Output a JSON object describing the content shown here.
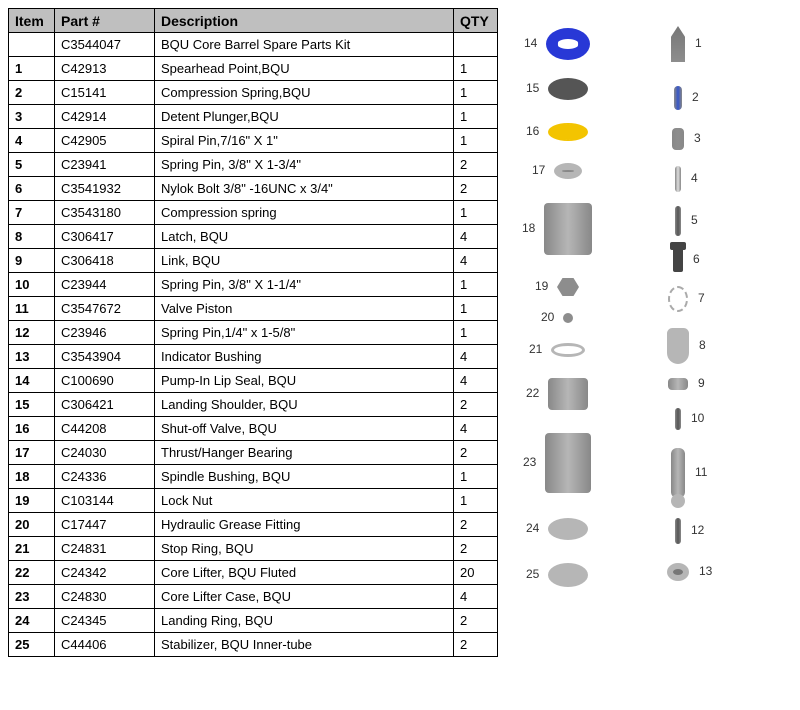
{
  "columns": [
    "Item",
    "Part #",
    "Description",
    "QTY"
  ],
  "rows": [
    [
      "",
      "C3544047",
      "BQU Core Barrel Spare Parts Kit",
      ""
    ],
    [
      "1",
      "C42913",
      "Spearhead Point,BQU",
      "1"
    ],
    [
      "2",
      "C15141",
      "Compression Spring,BQU",
      "1"
    ],
    [
      "3",
      "C42914",
      "Detent Plunger,BQU",
      "1"
    ],
    [
      "4",
      "C42905",
      "Spiral Pin,7/16\" X 1\"",
      "1"
    ],
    [
      "5",
      "C23941",
      "Spring Pin, 3/8\" X 1-3/4\"",
      "2"
    ],
    [
      "6",
      "C3541932",
      "Nylok Bolt 3/8\" -16UNC x 3/4\"",
      "2"
    ],
    [
      "7",
      "C3543180",
      "Compression spring",
      "1"
    ],
    [
      "8",
      "C306417",
      "Latch, BQU",
      "4"
    ],
    [
      "9",
      "C306418",
      "Link, BQU",
      "4"
    ],
    [
      "10",
      "C23944",
      "Spring Pin, 3/8\" X 1-1/4\"",
      "1"
    ],
    [
      "11",
      "C3547672",
      "Valve Piston",
      "1"
    ],
    [
      "12",
      "C23946",
      "Spring Pin,1/4\" x 1-5/8\"",
      "1"
    ],
    [
      "13",
      "C3543904",
      "Indicator Bushing",
      "4"
    ],
    [
      "14",
      "C100690",
      "Pump-In Lip Seal, BQU",
      "4"
    ],
    [
      "15",
      "C306421",
      "Landing Shoulder, BQU",
      "2"
    ],
    [
      "16",
      "C44208",
      "Shut-off Valve, BQU",
      "4"
    ],
    [
      "17",
      "C24030",
      "Thrust/Hanger Bearing",
      "2"
    ],
    [
      "18",
      "C24336",
      "Spindle Bushing, BQU",
      "1"
    ],
    [
      "19",
      "C103144",
      "Lock Nut",
      "1"
    ],
    [
      "20",
      "C17447",
      "Hydraulic Grease Fitting",
      "2"
    ],
    [
      "21",
      "C24831",
      "Stop Ring, BQU",
      "2"
    ],
    [
      "22",
      "C24342",
      "Core Lifter, BQU Fluted",
      "20"
    ],
    [
      "23",
      "C24830",
      "Core Lifter Case, BQU",
      "4"
    ],
    [
      "24",
      "C24345",
      "Landing Ring, BQU",
      "2"
    ],
    [
      "25",
      "C44406",
      "Stabilizer, BQU Inner-tube",
      "2"
    ]
  ],
  "diagram": {
    "left_labels": [
      14,
      15,
      16,
      17,
      18,
      19,
      20,
      21,
      22,
      23,
      24,
      25
    ],
    "right_labels": [
      1,
      2,
      3,
      4,
      5,
      6,
      7,
      8,
      9,
      10,
      11,
      12,
      13
    ],
    "colors": {
      "seal_blue": "#2838d6",
      "valve_yellow": "#f3c400",
      "metal": "#b6b6b6",
      "metal_dark": "#8d8d8d",
      "pin_blue": "#3656c9"
    }
  }
}
